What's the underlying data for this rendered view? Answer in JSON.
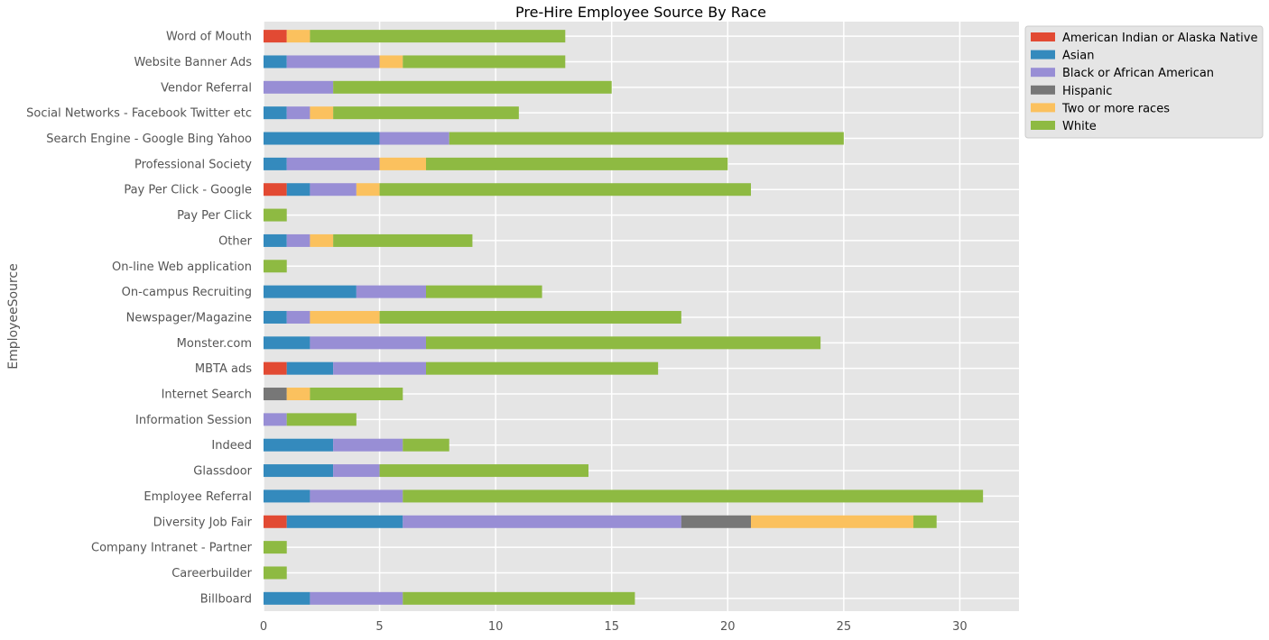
{
  "chart_data": {
    "type": "bar",
    "orientation": "horizontal",
    "stacked": true,
    "title": "Pre-Hire Employee Source By Race",
    "ylabel": "EmployeeSource",
    "xlabel": "",
    "xlim": [
      0,
      32.55
    ],
    "xticks": [
      0,
      5,
      10,
      15,
      20,
      25,
      30
    ],
    "grid": true,
    "legend_position": "outside-top-right",
    "categories": [
      "Billboard",
      "Careerbuilder",
      "Company Intranet - Partner",
      "Diversity Job Fair",
      "Employee Referral",
      "Glassdoor",
      "Indeed",
      "Information Session",
      "Internet Search",
      "MBTA ads",
      "Monster.com",
      "Newspager/Magazine",
      "On-campus Recruiting",
      "On-line Web application",
      "Other",
      "Pay Per Click",
      "Pay Per Click - Google",
      "Professional Society",
      "Search Engine - Google Bing Yahoo",
      "Social Networks - Facebook Twitter etc",
      "Vendor Referral",
      "Website Banner Ads",
      "Word of Mouth"
    ],
    "series": [
      {
        "name": "American Indian or Alaska Native",
        "color": "#E24A33",
        "values": [
          0,
          0,
          0,
          1,
          0,
          0,
          0,
          0,
          0,
          1,
          0,
          0,
          0,
          0,
          0,
          0,
          1,
          0,
          0,
          0,
          0,
          0,
          1
        ]
      },
      {
        "name": "Asian",
        "color": "#348ABD",
        "values": [
          2,
          0,
          0,
          5,
          2,
          3,
          3,
          0,
          0,
          2,
          2,
          1,
          4,
          0,
          1,
          0,
          1,
          1,
          5,
          1,
          0,
          1,
          0
        ]
      },
      {
        "name": "Black or African American",
        "color": "#988ED5",
        "values": [
          4,
          0,
          0,
          12,
          4,
          2,
          3,
          1,
          0,
          4,
          5,
          1,
          3,
          0,
          1,
          0,
          2,
          4,
          3,
          1,
          3,
          4,
          0
        ]
      },
      {
        "name": "Hispanic",
        "color": "#777777",
        "values": [
          0,
          0,
          0,
          3,
          0,
          0,
          0,
          0,
          1,
          0,
          0,
          0,
          0,
          0,
          0,
          0,
          0,
          0,
          0,
          0,
          0,
          0,
          0
        ]
      },
      {
        "name": "Two or more races",
        "color": "#FBC15E",
        "values": [
          0,
          0,
          0,
          7,
          0,
          0,
          0,
          0,
          1,
          0,
          0,
          3,
          0,
          0,
          1,
          0,
          1,
          2,
          0,
          1,
          0,
          1,
          1
        ]
      },
      {
        "name": "White",
        "color": "#8EBA42",
        "values": [
          10,
          1,
          1,
          1,
          25,
          9,
          2,
          3,
          4,
          10,
          17,
          13,
          5,
          1,
          6,
          1,
          16,
          13,
          17,
          8,
          12,
          7,
          11
        ]
      }
    ]
  }
}
